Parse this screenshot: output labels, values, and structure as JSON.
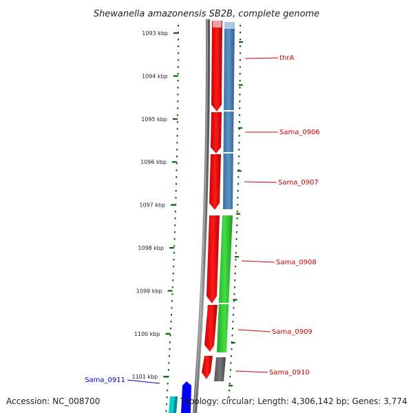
{
  "title": "Shewanella amazonensis SB2B, complete genome",
  "ticks": [
    "1093 kbp",
    "1094 kbp",
    "1095 kbp",
    "1096 kbp",
    "1097 kbp",
    "1098 kbp",
    "1099 kbp",
    "1100 kbp",
    "1101 kbp"
  ],
  "genes": [
    {
      "name": "thrA",
      "color": "#cc0000"
    },
    {
      "name": "Sama_0906",
      "color": "#cc0000"
    },
    {
      "name": "Sama_0907",
      "color": "#cc0000"
    },
    {
      "name": "Sama_0908",
      "color": "#cc0000"
    },
    {
      "name": "Sama_0909",
      "color": "#cc0000"
    },
    {
      "name": "Sama_0910",
      "color": "#cc0000"
    },
    {
      "name": "Sama_0911",
      "color": "#0000cc"
    }
  ],
  "footer": {
    "accession": "Accession: NC_008700",
    "summary": "Topology: circular; Length: 4,306,142 bp; Genes: 3,774"
  },
  "colors": {
    "tick": "#006400",
    "backbone": "#808080",
    "cds_forward": "#ff0000",
    "blue_feature": "#4682b4",
    "green_feature": "#33cc33",
    "gray_feature": "#666666",
    "cyan_feature": "#00cccc",
    "dark_blue_feature": "#0000ff"
  }
}
